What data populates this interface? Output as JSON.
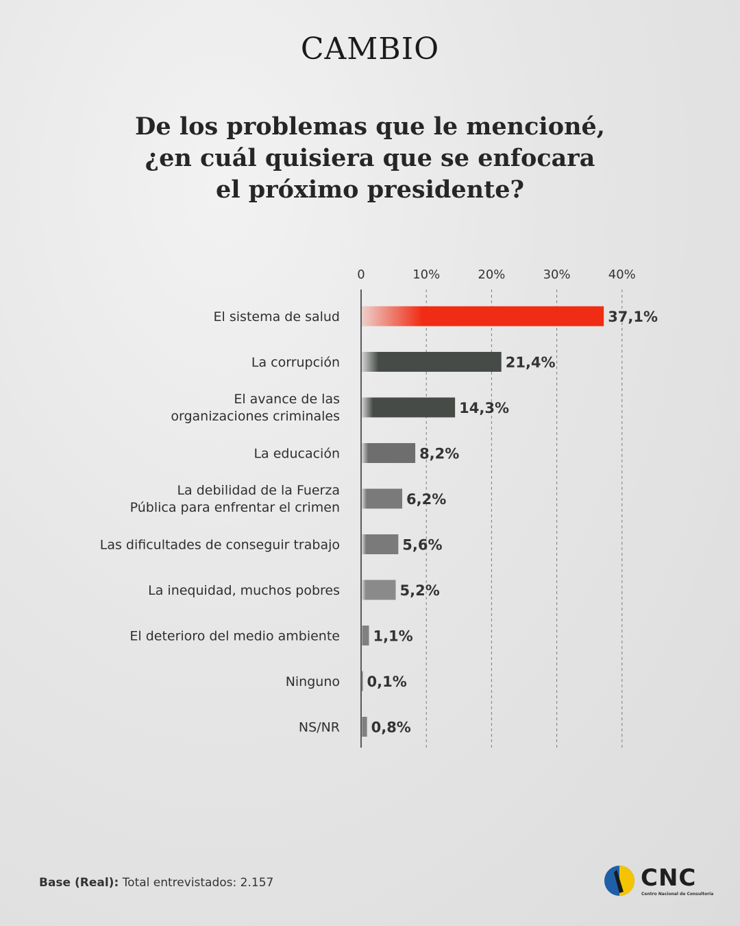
{
  "brand": "CAMBIO",
  "title_lines": [
    "De los problemas que le mencioné,",
    "¿en cuál quisiera que se enfocara",
    "el próximo presidente?"
  ],
  "chart_data": {
    "type": "bar",
    "orientation": "horizontal",
    "categories": [
      [
        "El sistema de salud"
      ],
      [
        "La corrupción"
      ],
      [
        "El avance de las",
        "organizaciones criminales"
      ],
      [
        "La educación"
      ],
      [
        "La debilidad de la Fuerza",
        "Pública para enfrentar el crimen"
      ],
      [
        "Las dificultades de conseguir trabajo"
      ],
      [
        "La inequidad, muchos pobres"
      ],
      [
        "El deterioro del medio ambiente"
      ],
      [
        "Ninguno"
      ],
      [
        "NS/NR"
      ]
    ],
    "values": [
      37.1,
      21.4,
      14.3,
      8.2,
      6.2,
      5.6,
      5.2,
      1.1,
      0.1,
      0.8
    ],
    "value_labels": [
      "37,1%",
      "21,4%",
      "14,3%",
      "8,2%",
      "6,2%",
      "5,6%",
      "5,2%",
      "1,1%",
      "0,1%",
      "0,8%"
    ],
    "xticks": [
      "0",
      "10%",
      "20%",
      "30%",
      "40%"
    ],
    "xlim": [
      0,
      40
    ],
    "grid": true,
    "highlight_color": "#f02c14",
    "bar_colors": [
      "#f02c14",
      "#474b48",
      "#474b48",
      "#6e6e6e",
      "#7a7a7a",
      "#7a7a7a",
      "#8a8a8a",
      "#808080",
      "#808080",
      "#808080"
    ]
  },
  "footer": {
    "base_label": "Base (Real):",
    "base_text": "Total entrevistados: 2.157"
  },
  "logo": {
    "name": "CNC",
    "subtitle": "Centro Nacional de Consultoría"
  }
}
